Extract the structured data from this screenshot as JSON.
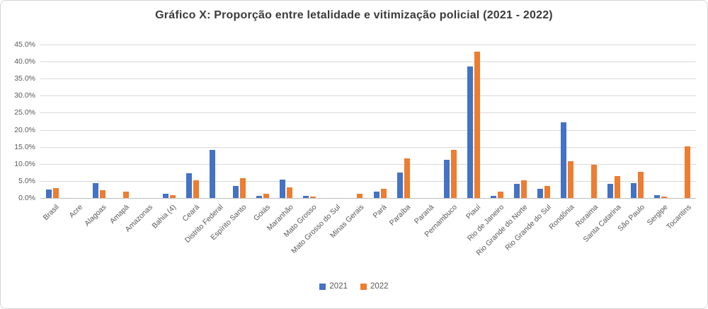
{
  "chart_data": {
    "type": "bar",
    "title": "Gráfico X: Proporção entre letalidade e vitimização policial (2021 - 2022)",
    "xlabel": "",
    "ylabel": "",
    "categories": [
      "Brasil",
      "Acre",
      "Alagoas",
      "Amapá",
      "Amazonas",
      "Bahia (4)",
      "Ceará",
      "Distrito Federal",
      "Espírito Santo",
      "Goiás",
      "Maranhão",
      "Mato Grosso",
      "Mato Grosso do Sul",
      "Minas Gerais",
      "Pará",
      "Paraíba",
      "Paraná",
      "Pernambuco",
      "Piauí",
      "Rio de Janeiro",
      "Rio Grande do Norte",
      "Rio Grande do Sul",
      "Rondônia",
      "Roraima",
      "Santa Catarina",
      "São Paulo",
      "Sergipe",
      "Tocantins"
    ],
    "series": [
      {
        "name": "2021",
        "color": "#4472C4",
        "values": [
          2.4,
          0,
          4.3,
          0,
          0,
          1.2,
          7.2,
          14.0,
          3.6,
          0.7,
          5.4,
          0.7,
          0,
          0,
          1.9,
          7.4,
          0,
          11.2,
          38.5,
          0.6,
          4.2,
          2.7,
          22.2,
          0,
          4.1,
          4.3,
          0.8,
          0
        ]
      },
      {
        "name": "2022",
        "color": "#ED7D31",
        "values": [
          2.9,
          0,
          2.2,
          1.8,
          0,
          0.8,
          5.1,
          0,
          5.8,
          1.2,
          3.2,
          0.5,
          0,
          1.2,
          2.7,
          11.6,
          0,
          14.2,
          42.9,
          1.9,
          5.2,
          3.5,
          10.8,
          9.8,
          6.5,
          7.6,
          0.4,
          15.1
        ]
      }
    ],
    "y_axis": {
      "min": 0,
      "max": 45,
      "step": 5,
      "tick_labels": [
        "0.0%",
        "5.0%",
        "10.0%",
        "15.0%",
        "20.0%",
        "25.0%",
        "30.0%",
        "35.0%",
        "40.0%",
        "45.0%"
      ]
    },
    "grid": true,
    "legend_position": "bottom",
    "colors": {
      "title_text": "#3b3b3b",
      "axis_text": "#595959",
      "gridline": "#d9d9d9",
      "axis_line": "#bfbfbf",
      "background": "#ffffff",
      "border": "#d6d6d6"
    }
  }
}
